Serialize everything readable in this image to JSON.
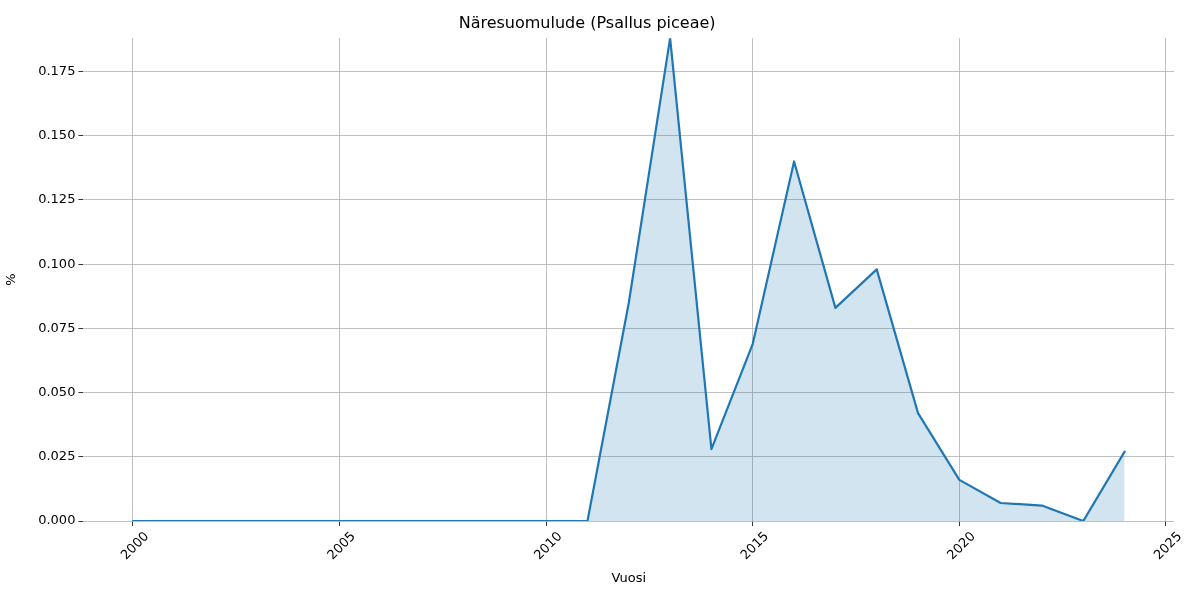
{
  "chart_data": {
    "type": "area",
    "title": "Näresuomulude (Psallus piceae)",
    "xlabel": "Vuosi",
    "ylabel": "%",
    "x": [
      2000,
      2001,
      2002,
      2003,
      2004,
      2005,
      2006,
      2007,
      2008,
      2009,
      2010,
      2011,
      2012,
      2013,
      2014,
      2015,
      2016,
      2017,
      2018,
      2019,
      2020,
      2021,
      2022,
      2023,
      2024
    ],
    "series": [
      {
        "color": "#1f77b4",
        "values": [
          0,
          0,
          0,
          0,
          0,
          0,
          0,
          0,
          0,
          0,
          0,
          0,
          0.085,
          0.188,
          0.028,
          0.069,
          0.14,
          0.083,
          0.098,
          0.042,
          0.016,
          0.007,
          0.006,
          0,
          0.027
        ]
      }
    ],
    "xlim": [
      1998.8,
      2025.2
    ],
    "xticks": [
      2000,
      2005,
      2010,
      2015,
      2020,
      2025
    ],
    "ylim": [
      0,
      0.188
    ],
    "yticks": [
      {
        "value": 0,
        "label": "0.000"
      },
      0.025,
      {
        "value": 0.05,
        "label": "0.050"
      },
      0.075,
      {
        "value": 0.1,
        "label": "0.100"
      },
      0.125,
      {
        "value": 0.15,
        "label": "0.150"
      },
      0.175
    ],
    "grid": true
  }
}
